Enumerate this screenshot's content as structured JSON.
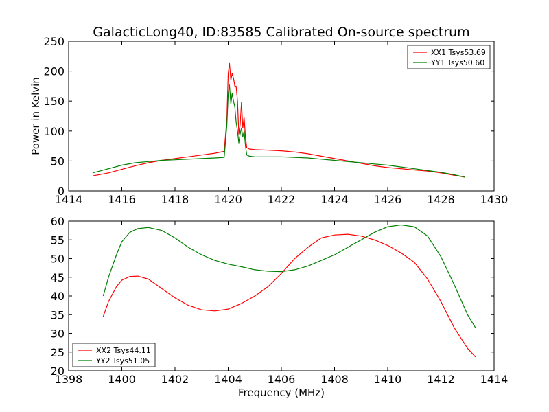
{
  "page_title": "GalacticLong40, ID:83585 Calibrated On-source spectrum",
  "colors": {
    "xx": "#ff0000",
    "yy": "#007f00"
  },
  "chart_data": [
    {
      "type": "line",
      "title": "GalacticLong40, ID:83585 Calibrated On-source spectrum",
      "xlabel": "",
      "ylabel": "Power in Kelvin",
      "xlim": [
        1414,
        1430
      ],
      "ylim": [
        0,
        250
      ],
      "xticks": [
        "1414",
        "1416",
        "1418",
        "1420",
        "1422",
        "1424",
        "1426",
        "1428",
        "1430"
      ],
      "yticks": [
        "0",
        "50",
        "100",
        "150",
        "200",
        "250"
      ],
      "legend_position": "top-right",
      "series": [
        {
          "name": "XX1 Tsys53.69",
          "color": "#ff0000",
          "x": [
            1414.9,
            1415.5,
            1416.0,
            1416.5,
            1417.0,
            1417.5,
            1418.0,
            1418.5,
            1419.0,
            1419.5,
            1419.85,
            1419.95,
            1420.0,
            1420.05,
            1420.1,
            1420.15,
            1420.2,
            1420.25,
            1420.3,
            1420.35,
            1420.4,
            1420.45,
            1420.5,
            1420.55,
            1420.6,
            1420.65,
            1420.7,
            1420.8,
            1421.0,
            1421.5,
            1422.0,
            1422.5,
            1423.0,
            1423.5,
            1424.0,
            1424.5,
            1425.0,
            1425.5,
            1426.0,
            1426.5,
            1427.0,
            1427.5,
            1428.0,
            1428.5,
            1428.9
          ],
          "y": [
            25,
            30,
            36,
            42,
            47,
            51,
            54,
            57,
            60,
            63,
            66,
            120,
            195,
            213,
            185,
            196,
            188,
            175,
            175,
            150,
            95,
            110,
            148,
            105,
            123,
            90,
            72,
            70,
            69,
            68,
            67,
            65,
            62,
            58,
            54,
            50,
            46,
            42,
            39,
            37,
            35,
            33,
            30,
            26,
            23
          ]
        },
        {
          "name": "YY1 Tsys50.60",
          "color": "#007f00",
          "x": [
            1414.9,
            1415.5,
            1416.0,
            1416.5,
            1417.0,
            1417.5,
            1418.0,
            1418.5,
            1419.0,
            1419.5,
            1419.85,
            1419.95,
            1420.0,
            1420.05,
            1420.1,
            1420.15,
            1420.2,
            1420.25,
            1420.3,
            1420.35,
            1420.4,
            1420.45,
            1420.5,
            1420.55,
            1420.6,
            1420.65,
            1420.7,
            1420.8,
            1421.0,
            1421.5,
            1422.0,
            1422.5,
            1423.0,
            1423.5,
            1424.0,
            1424.5,
            1425.0,
            1425.5,
            1426.0,
            1426.5,
            1427.0,
            1427.5,
            1428.0,
            1428.5,
            1428.9
          ],
          "y": [
            30,
            37,
            43,
            47,
            49,
            51,
            52,
            53,
            54,
            55,
            56,
            110,
            160,
            177,
            145,
            163,
            150,
            140,
            115,
            100,
            80,
            95,
            105,
            90,
            100,
            75,
            60,
            58,
            57,
            57,
            57,
            56,
            55,
            53,
            51,
            49,
            47,
            45,
            43,
            40,
            37,
            34,
            31,
            27,
            23
          ]
        }
      ]
    },
    {
      "type": "line",
      "title": "",
      "xlabel": "Frequency (MHz)",
      "ylabel": "",
      "xlim": [
        1398,
        1414
      ],
      "ylim": [
        20,
        60
      ],
      "xticks": [
        "1398",
        "1400",
        "1402",
        "1404",
        "1406",
        "1408",
        "1410",
        "1412",
        "1414"
      ],
      "yticks": [
        "20",
        "25",
        "30",
        "35",
        "40",
        "45",
        "50",
        "55",
        "60"
      ],
      "legend_position": "bottom-left",
      "series": [
        {
          "name": "XX2 Tsys44.11",
          "color": "#ff0000",
          "x": [
            1399.3,
            1399.5,
            1399.8,
            1400.0,
            1400.3,
            1400.6,
            1401.0,
            1401.5,
            1402.0,
            1402.5,
            1403.0,
            1403.5,
            1404.0,
            1404.5,
            1405.0,
            1405.5,
            1406.0,
            1406.5,
            1407.0,
            1407.5,
            1408.0,
            1408.5,
            1409.0,
            1409.5,
            1410.0,
            1410.5,
            1411.0,
            1411.5,
            1412.0,
            1412.5,
            1413.0,
            1413.3
          ],
          "y": [
            34.5,
            38.5,
            42.5,
            44.2,
            45.2,
            45.3,
            44.5,
            42.0,
            39.5,
            37.5,
            36.3,
            36.0,
            36.5,
            38.0,
            40.0,
            42.5,
            46.0,
            50.0,
            53.0,
            55.5,
            56.3,
            56.5,
            56.0,
            55.0,
            53.5,
            51.5,
            49.0,
            44.5,
            38.5,
            31.5,
            26.0,
            23.7
          ]
        },
        {
          "name": "YY2 Tsys51.05",
          "color": "#007f00",
          "x": [
            1399.3,
            1399.5,
            1399.8,
            1400.0,
            1400.3,
            1400.6,
            1401.0,
            1401.5,
            1402.0,
            1402.5,
            1403.0,
            1403.5,
            1404.0,
            1404.5,
            1405.0,
            1405.5,
            1406.0,
            1406.5,
            1407.0,
            1407.5,
            1408.0,
            1408.5,
            1409.0,
            1409.5,
            1410.0,
            1410.5,
            1411.0,
            1411.5,
            1412.0,
            1412.5,
            1413.0,
            1413.3
          ],
          "y": [
            40.0,
            45.0,
            51.0,
            54.5,
            57.0,
            58.0,
            58.3,
            57.5,
            55.5,
            53.0,
            51.0,
            49.5,
            48.5,
            47.8,
            47.0,
            46.6,
            46.5,
            47.0,
            48.0,
            49.5,
            51.0,
            53.0,
            55.0,
            57.0,
            58.5,
            59.0,
            58.5,
            56.0,
            50.5,
            43.0,
            35.0,
            31.5
          ]
        }
      ]
    }
  ]
}
